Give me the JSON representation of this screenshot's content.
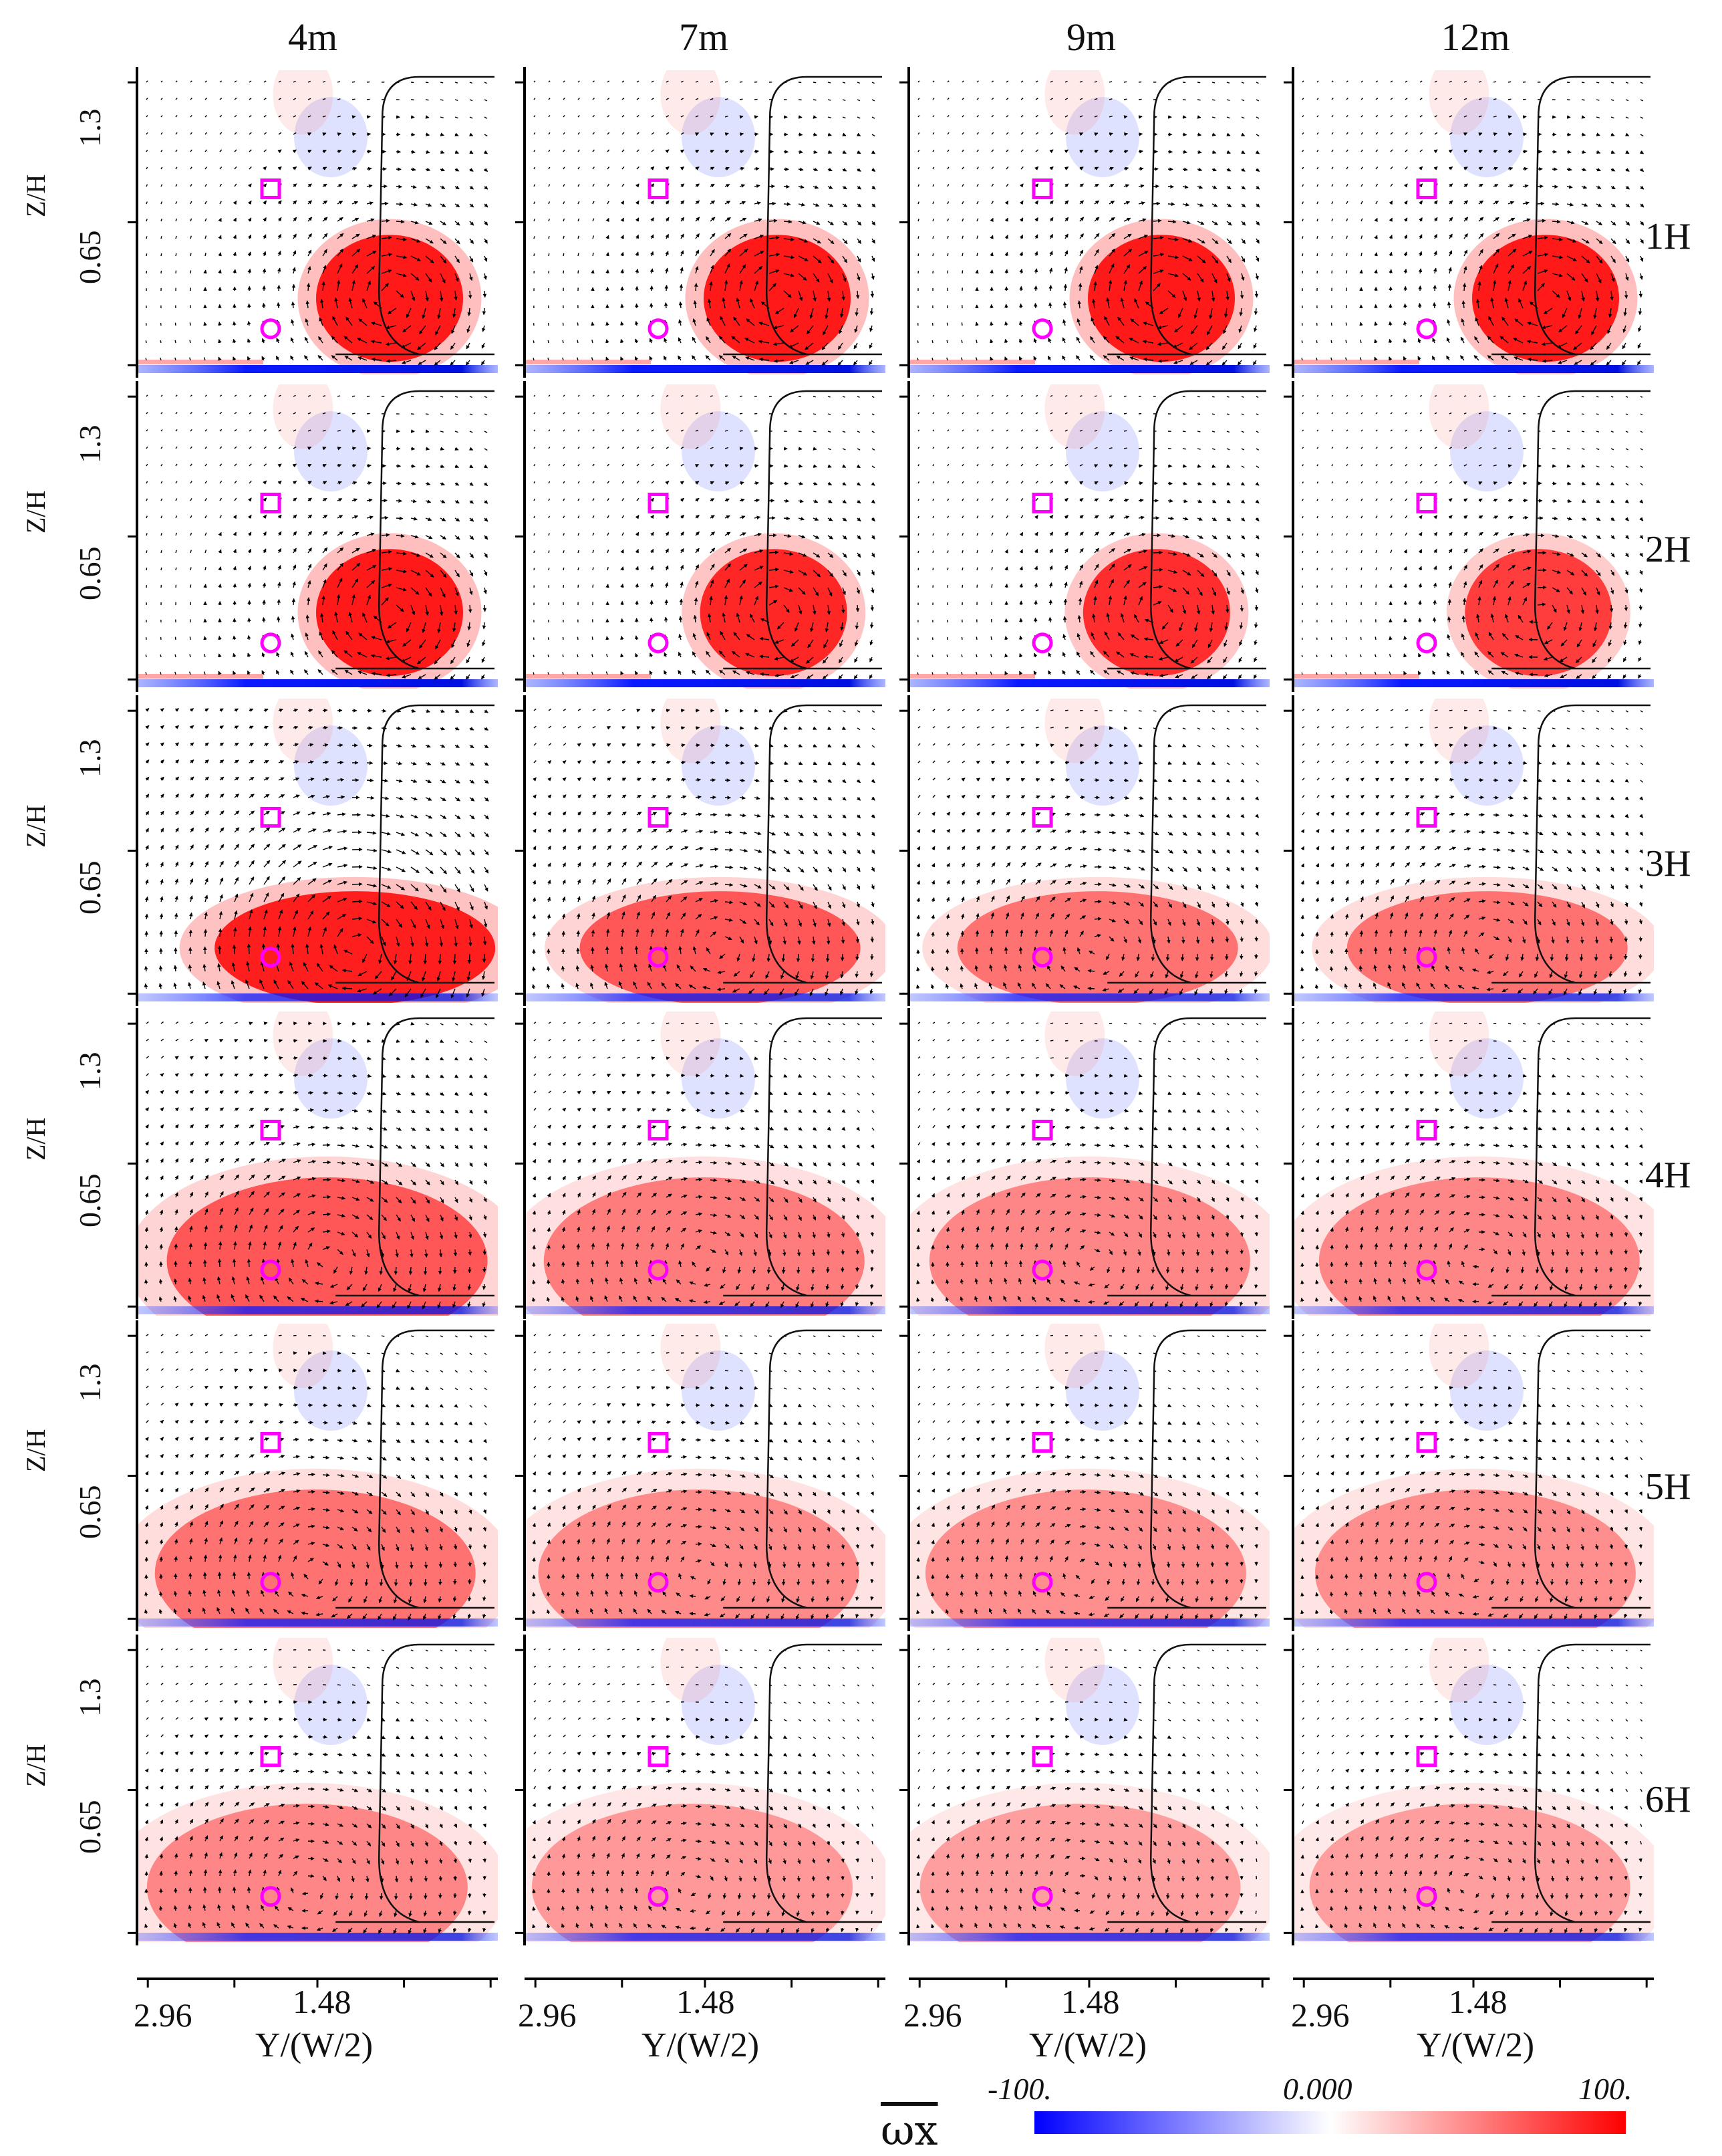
{
  "columns": [
    "4m",
    "7m",
    "9m",
    "12m"
  ],
  "rows": [
    "1H",
    "2H",
    "3H",
    "4H",
    "5H",
    "6H"
  ],
  "y_axis": {
    "label": "Z/H",
    "ticks": [
      "1.3",
      "0.65"
    ]
  },
  "x_axis": {
    "label": "Y/(W/2)",
    "ticks": [
      "2.96",
      "1.48"
    ]
  },
  "colorbar": {
    "label": "ωx",
    "min_label": "-100.",
    "mid_label": "0.000",
    "max_label": "100.",
    "low_color": "#0000ff",
    "mid_color": "#ffffff",
    "high_color": "#ff0000"
  },
  "markers": {
    "square_color": "#ff00ff",
    "circle_color": "#ff00ff"
  },
  "vortex_strength": [
    [
      1.0,
      1.0,
      1.0,
      1.0
    ],
    [
      1.0,
      0.85,
      0.8,
      0.7
    ],
    [
      0.9,
      0.55,
      0.4,
      0.4
    ],
    [
      0.55,
      0.35,
      0.3,
      0.3
    ],
    [
      0.4,
      0.28,
      0.25,
      0.25
    ],
    [
      0.3,
      0.2,
      0.18,
      0.18
    ]
  ]
}
